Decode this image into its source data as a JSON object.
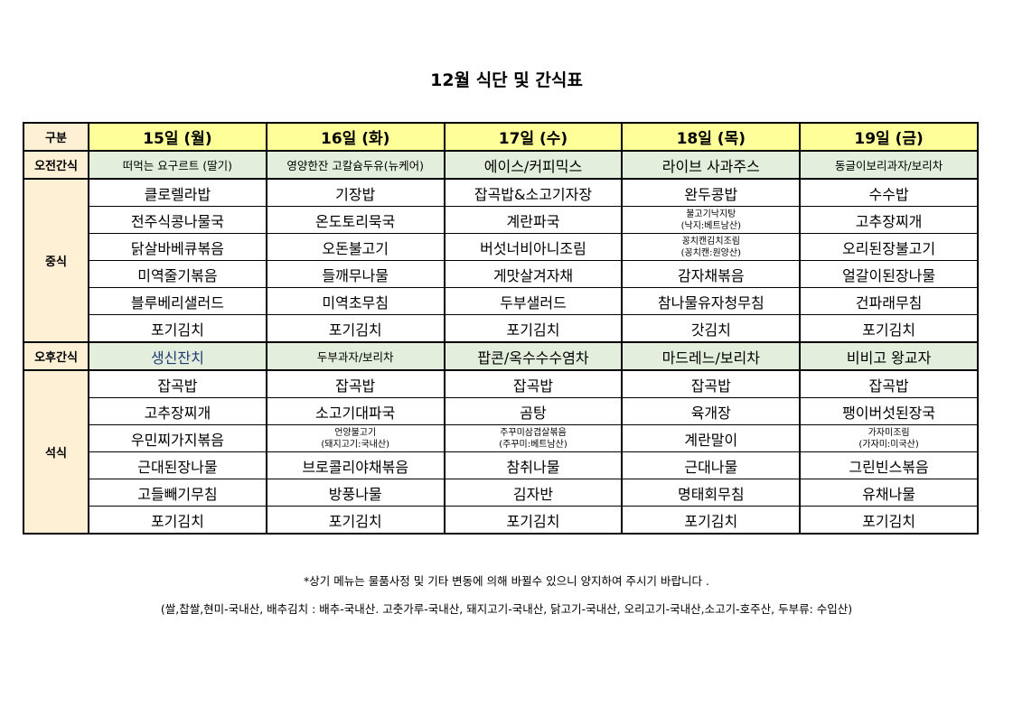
{
  "title": "12월 식단 및 간식표",
  "header": {
    "label": "구분",
    "days": [
      "15일 (월)",
      "16일 (화)",
      "17일 (수)",
      "18일 (목)",
      "19일 (금)"
    ]
  },
  "morning_snack": {
    "label": "오전간식",
    "items": [
      {
        "text": "떠먹는 요구르트 (딸기)",
        "small": true
      },
      {
        "text": "영양한잔 고칼슘두유(뉴케어)",
        "small": true
      },
      {
        "text": "에이스/커피믹스"
      },
      {
        "text": "라이브 사과주스"
      },
      {
        "text": "동글이보리과자/보리차",
        "small": true
      }
    ]
  },
  "lunch": {
    "label": "중식",
    "rows": [
      [
        {
          "text": "클로렐라밥"
        },
        {
          "text": "기장밥"
        },
        {
          "text": "잡곡밥&소고기자장"
        },
        {
          "text": "완두콩밥"
        },
        {
          "text": "수수밥"
        }
      ],
      [
        {
          "text": "전주식콩나물국"
        },
        {
          "text": "온도토리묵국"
        },
        {
          "text": "계란파국"
        },
        {
          "text": "불고기낙지탕",
          "sub": "(낙지:베트남산)"
        },
        {
          "text": "고추장찌개"
        }
      ],
      [
        {
          "text": "닭살바베큐볶음"
        },
        {
          "text": "오돈불고기"
        },
        {
          "text": "버섯너비아니조림"
        },
        {
          "text": "꽁치캔김치조림",
          "sub": "(꽁치캔:원양산)"
        },
        {
          "text": "오리된장불고기"
        }
      ],
      [
        {
          "text": "미역줄기볶음"
        },
        {
          "text": "들깨무나물"
        },
        {
          "text": "게맛살겨자채"
        },
        {
          "text": "감자채볶음"
        },
        {
          "text": "얼갈이된장나물"
        }
      ],
      [
        {
          "text": "블루베리샐러드"
        },
        {
          "text": "미역초무침"
        },
        {
          "text": "두부샐러드"
        },
        {
          "text": "참나물유자청무침"
        },
        {
          "text": "건파래무침"
        }
      ],
      [
        {
          "text": "포기김치"
        },
        {
          "text": "포기김치"
        },
        {
          "text": "포기김치"
        },
        {
          "text": "갓김치"
        },
        {
          "text": "포기김치"
        }
      ]
    ]
  },
  "afternoon_snack": {
    "label": "오후간식",
    "items": [
      {
        "text": "생신잔치",
        "highlight": "#1f3b73"
      },
      {
        "text": "두부과자/보리차",
        "small": true
      },
      {
        "text": "팝콘/옥수수수염차"
      },
      {
        "text": "마드레느/보리차"
      },
      {
        "text": "비비고 왕교자"
      }
    ]
  },
  "dinner": {
    "label": "석식",
    "rows": [
      [
        {
          "text": "잡곡밥"
        },
        {
          "text": "잡곡밥"
        },
        {
          "text": "잡곡밥"
        },
        {
          "text": "잡곡밥"
        },
        {
          "text": "잡곡밥"
        }
      ],
      [
        {
          "text": "고추장찌개"
        },
        {
          "text": "소고기대파국"
        },
        {
          "text": "곰탕"
        },
        {
          "text": "육개장"
        },
        {
          "text": "팽이버섯된장국"
        }
      ],
      [
        {
          "text": "우민찌가지볶음"
        },
        {
          "text": "언양불고기",
          "sub": "(돼지고기:국내산)"
        },
        {
          "text": "주꾸미삼겹살볶음",
          "sub": "(주꾸미:베트남산)"
        },
        {
          "text": "계란말이"
        },
        {
          "text": "가자미조림",
          "sub": "(가자미:미국산)"
        }
      ],
      [
        {
          "text": "근대된장나물"
        },
        {
          "text": "브로콜리야채볶음"
        },
        {
          "text": "참취나물"
        },
        {
          "text": "근대나물"
        },
        {
          "text": "그린빈스볶음"
        }
      ],
      [
        {
          "text": "고들빼기무침"
        },
        {
          "text": "방풍나물"
        },
        {
          "text": "김자반"
        },
        {
          "text": "명태회무침"
        },
        {
          "text": "유채나물"
        }
      ],
      [
        {
          "text": "포기김치"
        },
        {
          "text": "포기김치"
        },
        {
          "text": "포기김치"
        },
        {
          "text": "포기김치"
        },
        {
          "text": "포기김치"
        }
      ]
    ]
  },
  "notes": [
    "*상기 메뉴는 물품사정 및 기타 변동에 의해 바뀔수 있으니 양지하여 주시기 바랍니다 .",
    "(쌀,찹쌀,현미-국내산, 배추김치 : 배추-국내산. 고춧가루-국내산, 돼지고기-국내산, 닭고기-국내산, 오리고기-국내산,소고기-호주산, 두부류: 수입산)"
  ]
}
